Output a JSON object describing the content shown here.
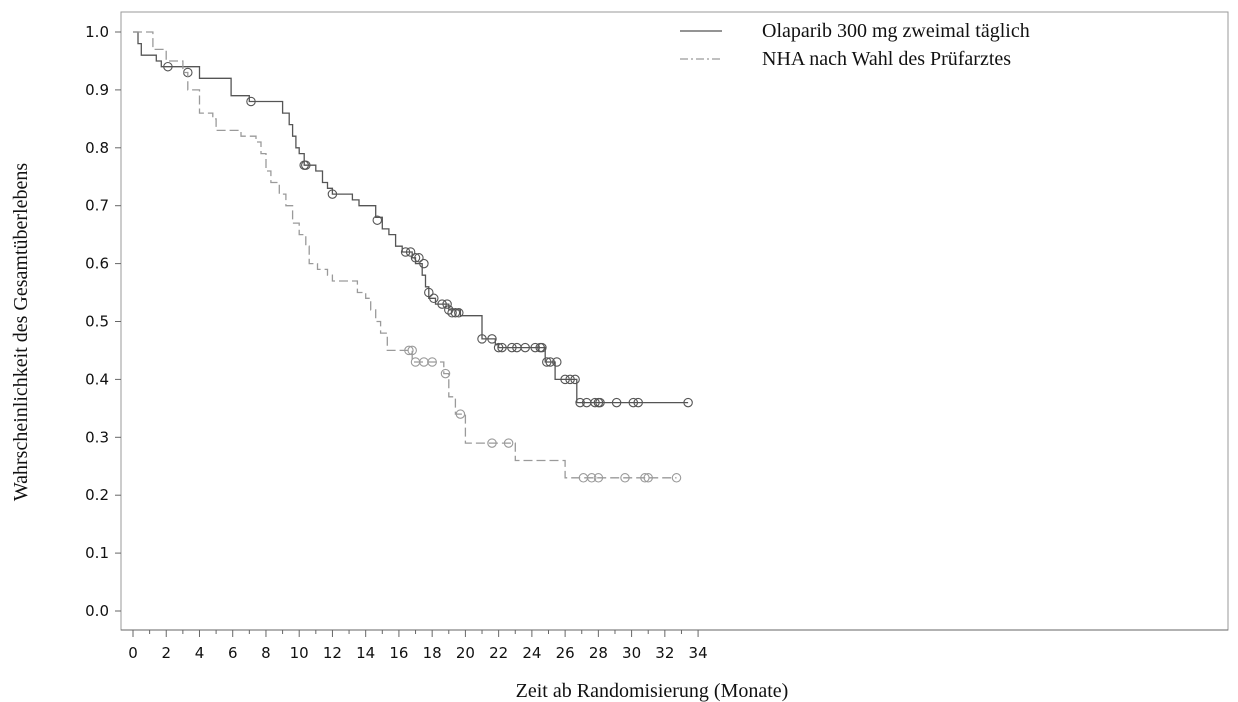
{
  "chart_data": {
    "type": "line",
    "title": "",
    "xlabel": "Zeit ab Randomisierung (Monate)",
    "ylabel": "Wahrscheinlichkeit des Gesamtüberlebens",
    "xlim": [
      0,
      36
    ],
    "ylim": [
      0,
      1
    ],
    "x_ticks": [
      "0",
      "2",
      "4",
      "6",
      "8",
      "10",
      "12",
      "14",
      "16",
      "18",
      "20",
      "22",
      "24",
      "26",
      "28",
      "30",
      "32",
      "34"
    ],
    "y_ticks": [
      "0.0",
      "0.1",
      "0.2",
      "0.3",
      "0.4",
      "0.5",
      "0.6",
      "0.7",
      "0.8",
      "0.9",
      "1.0"
    ],
    "grid": false,
    "legend_position": "top-right",
    "series": [
      {
        "name": "Olaparib 300 mg zweimal täglich",
        "color": "#555555",
        "line_style": "solid",
        "steps": [
          [
            0,
            1.0
          ],
          [
            0.3,
            0.98
          ],
          [
            0.5,
            0.96
          ],
          [
            1.4,
            0.95
          ],
          [
            1.7,
            0.94
          ],
          [
            4.0,
            0.92
          ],
          [
            5.9,
            0.89
          ],
          [
            7.0,
            0.88
          ],
          [
            7.4,
            0.88
          ],
          [
            9.0,
            0.86
          ],
          [
            9.4,
            0.84
          ],
          [
            9.6,
            0.82
          ],
          [
            9.8,
            0.8
          ],
          [
            10.0,
            0.79
          ],
          [
            10.3,
            0.77
          ],
          [
            11.0,
            0.76
          ],
          [
            11.4,
            0.74
          ],
          [
            11.7,
            0.73
          ],
          [
            12.0,
            0.72
          ],
          [
            13.2,
            0.71
          ],
          [
            13.6,
            0.7
          ],
          [
            14.6,
            0.68
          ],
          [
            15.0,
            0.66
          ],
          [
            15.4,
            0.65
          ],
          [
            15.8,
            0.63
          ],
          [
            16.2,
            0.62
          ],
          [
            16.8,
            0.61
          ],
          [
            17.0,
            0.6
          ],
          [
            17.4,
            0.58
          ],
          [
            17.6,
            0.56
          ],
          [
            17.8,
            0.54
          ],
          [
            18.2,
            0.53
          ],
          [
            19.0,
            0.52
          ],
          [
            19.7,
            0.51
          ],
          [
            21.0,
            0.47
          ],
          [
            21.8,
            0.46
          ],
          [
            22.0,
            0.455
          ],
          [
            24.8,
            0.43
          ],
          [
            25.4,
            0.4
          ],
          [
            26.7,
            0.36
          ],
          [
            33.4,
            0.36
          ]
        ],
        "censors": [
          [
            2.1,
            0.94
          ],
          [
            3.3,
            0.93
          ],
          [
            7.1,
            0.88
          ],
          [
            10.3,
            0.77
          ],
          [
            10.4,
            0.77
          ],
          [
            12.0,
            0.72
          ],
          [
            14.7,
            0.675
          ],
          [
            16.4,
            0.62
          ],
          [
            16.7,
            0.62
          ],
          [
            17.0,
            0.61
          ],
          [
            17.2,
            0.61
          ],
          [
            17.5,
            0.6
          ],
          [
            17.8,
            0.55
          ],
          [
            18.1,
            0.54
          ],
          [
            18.6,
            0.53
          ],
          [
            18.9,
            0.53
          ],
          [
            19.0,
            0.52
          ],
          [
            19.2,
            0.515
          ],
          [
            19.4,
            0.515
          ],
          [
            19.6,
            0.515
          ],
          [
            21.0,
            0.47
          ],
          [
            21.6,
            0.47
          ],
          [
            22.0,
            0.455
          ],
          [
            22.2,
            0.455
          ],
          [
            22.8,
            0.455
          ],
          [
            23.1,
            0.455
          ],
          [
            23.6,
            0.455
          ],
          [
            24.2,
            0.455
          ],
          [
            24.5,
            0.455
          ],
          [
            24.6,
            0.455
          ],
          [
            24.9,
            0.43
          ],
          [
            25.1,
            0.43
          ],
          [
            25.5,
            0.43
          ],
          [
            26.0,
            0.4
          ],
          [
            26.3,
            0.4
          ],
          [
            26.6,
            0.4
          ],
          [
            26.9,
            0.36
          ],
          [
            27.3,
            0.36
          ],
          [
            27.8,
            0.36
          ],
          [
            28.0,
            0.36
          ],
          [
            28.1,
            0.36
          ],
          [
            29.1,
            0.36
          ],
          [
            30.1,
            0.36
          ],
          [
            30.4,
            0.36
          ],
          [
            33.4,
            0.36
          ]
        ]
      },
      {
        "name": "NHA nach Wahl des Prüfarztes",
        "color": "#9a9a9a",
        "line_style": "dashed",
        "steps": [
          [
            0,
            1.0
          ],
          [
            1.2,
            0.97
          ],
          [
            2.0,
            0.95
          ],
          [
            3.0,
            0.93
          ],
          [
            3.3,
            0.9
          ],
          [
            4.0,
            0.86
          ],
          [
            4.8,
            0.85
          ],
          [
            5.0,
            0.83
          ],
          [
            6.5,
            0.82
          ],
          [
            7.4,
            0.81
          ],
          [
            7.7,
            0.79
          ],
          [
            8.0,
            0.76
          ],
          [
            8.3,
            0.74
          ],
          [
            8.8,
            0.72
          ],
          [
            9.2,
            0.7
          ],
          [
            9.6,
            0.67
          ],
          [
            10.0,
            0.65
          ],
          [
            10.4,
            0.63
          ],
          [
            10.6,
            0.6
          ],
          [
            11.1,
            0.59
          ],
          [
            11.7,
            0.58
          ],
          [
            12.0,
            0.57
          ],
          [
            13.5,
            0.55
          ],
          [
            14.0,
            0.54
          ],
          [
            14.3,
            0.52
          ],
          [
            14.6,
            0.5
          ],
          [
            14.9,
            0.48
          ],
          [
            15.3,
            0.45
          ],
          [
            16.8,
            0.43
          ],
          [
            18.7,
            0.41
          ],
          [
            19.0,
            0.37
          ],
          [
            19.4,
            0.34
          ],
          [
            20.0,
            0.29
          ],
          [
            23.0,
            0.26
          ],
          [
            26.0,
            0.23
          ],
          [
            32.7,
            0.23
          ]
        ],
        "censors": [
          [
            16.6,
            0.45
          ],
          [
            16.8,
            0.45
          ],
          [
            17.0,
            0.43
          ],
          [
            17.5,
            0.43
          ],
          [
            18.0,
            0.43
          ],
          [
            18.8,
            0.41
          ],
          [
            19.7,
            0.34
          ],
          [
            21.6,
            0.29
          ],
          [
            22.6,
            0.29
          ],
          [
            27.1,
            0.23
          ],
          [
            27.6,
            0.23
          ],
          [
            28.0,
            0.23
          ],
          [
            29.6,
            0.23
          ],
          [
            30.8,
            0.23
          ],
          [
            31.0,
            0.23
          ],
          [
            32.7,
            0.23
          ]
        ]
      }
    ]
  }
}
